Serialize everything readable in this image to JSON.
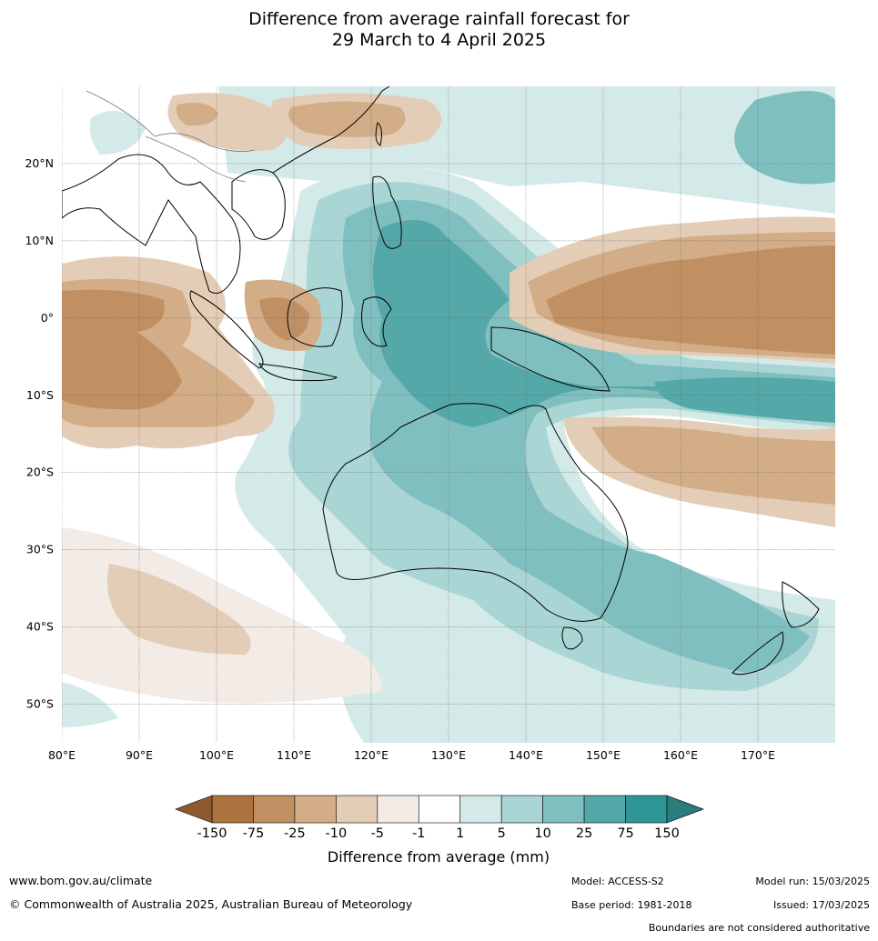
{
  "title": {
    "line1": "Difference from average rainfall forecast for",
    "line2": "29 March to 4 April 2025"
  },
  "map": {
    "lat_labels": [
      "20°N",
      "10°N",
      "0°",
      "10°S",
      "20°S",
      "30°S",
      "40°S",
      "50°S"
    ],
    "lon_labels": [
      "80°E",
      "90°E",
      "100°E",
      "110°E",
      "120°E",
      "130°E",
      "140°E",
      "150°E",
      "160°E",
      "170°E"
    ],
    "lat_values": [
      20,
      10,
      0,
      -10,
      -20,
      -30,
      -40,
      -50
    ],
    "lon_values": [
      80,
      90,
      100,
      110,
      120,
      130,
      140,
      150,
      160,
      170
    ],
    "extent": {
      "lon": [
        80,
        180
      ],
      "lat": [
        -55,
        30
      ]
    }
  },
  "legend": {
    "ticks": [
      "-150",
      "-75",
      "-25",
      "-10",
      "-5",
      "-1",
      "1",
      "5",
      "10",
      "25",
      "75",
      "150"
    ],
    "colors": [
      "#ab733d",
      "#c09063",
      "#d2ad87",
      "#e4cdb6",
      "#f3ebe5",
      "#ffffff",
      "#d4eae9",
      "#a9d6d4",
      "#80bfbf",
      "#55a8a8",
      "#2e9795",
      "#2a7d7b"
    ],
    "low_extend_color": "#8e5a2d",
    "high_extend_color": "#2a7d7b",
    "label": "Difference from average (mm)"
  },
  "footer": {
    "website": "www.bom.gov.au/climate",
    "copyright": "© Commonwealth of Australia 2025, Australian Bureau of Meteorology",
    "model": "Model: ACCESS-S2",
    "base_period": "Base period: 1981-2018",
    "model_run": "Model run: 15/03/2025",
    "issued": "Issued: 17/03/2025",
    "disclaimer": "Boundaries are not considered authoritative"
  }
}
